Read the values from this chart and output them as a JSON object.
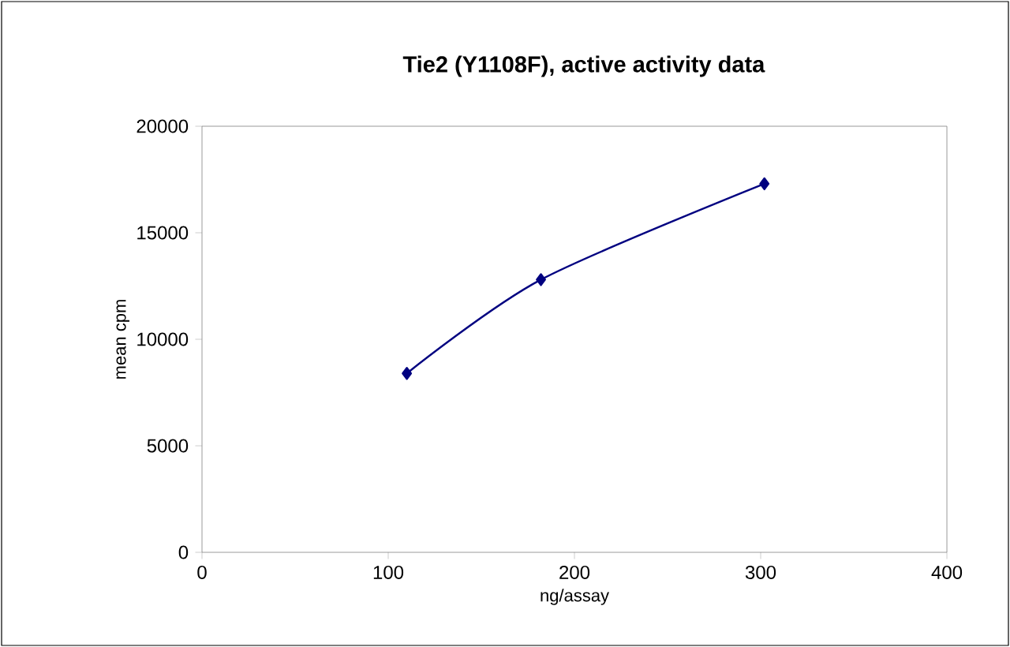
{
  "chart_data": {
    "type": "line",
    "title": "**Tie2 (Y1108F), active activity data**",
    "xlabel": "ng/assay",
    "ylabel": "mean cpm",
    "x": [
      110,
      182,
      302
    ],
    "series": [
      {
        "color": "#000080",
        "values": [
          8400,
          12800,
          17300
        ]
      }
    ],
    "xlim": [
      0,
      400
    ],
    "xticks": [
      0,
      100,
      200,
      300,
      400
    ],
    "ylim": [
      0,
      20000
    ],
    "yticks": [
      0,
      5000,
      10000,
      15000,
      20000
    ],
    "grid": false,
    "marker": "diamond",
    "line_style": "solid"
  }
}
